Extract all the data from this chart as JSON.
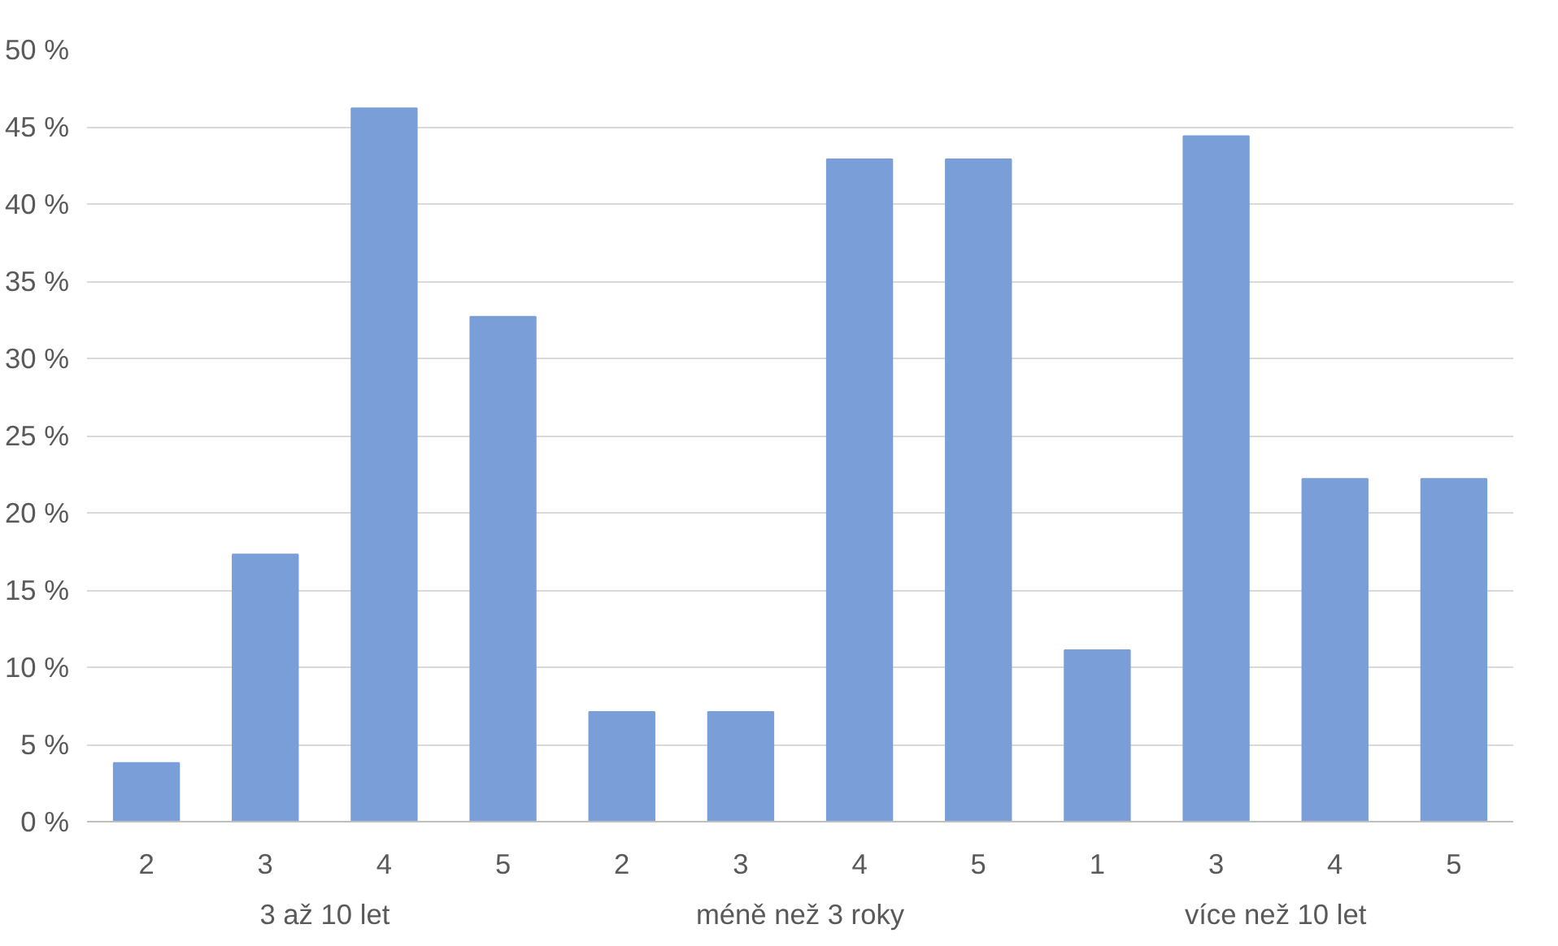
{
  "chart_data": {
    "type": "bar",
    "categories": [
      "2",
      "3",
      "4",
      "5",
      "2",
      "3",
      "4",
      "5",
      "1",
      "3",
      "4",
      "5"
    ],
    "values": [
      3.8,
      17.3,
      46.2,
      32.7,
      7.1,
      7.1,
      42.9,
      42.9,
      11.1,
      44.4,
      22.2,
      22.2
    ],
    "color": "#7a9fd8",
    "annotations": [
      "3 až 10 let",
      "méně než 3 roky",
      "více než 10 let"
    ],
    "ylim": [
      0,
      50
    ],
    "yticks": [
      {
        "value": 0,
        "label": "0 %"
      },
      {
        "value": 5,
        "label": "5 %"
      },
      {
        "value": 10,
        "label": "10 %"
      },
      {
        "value": 15,
        "label": "15 %"
      },
      {
        "value": 20,
        "label": "20 %"
      },
      {
        "value": 25,
        "label": "25 %"
      },
      {
        "value": 30,
        "label": "30 %"
      },
      {
        "value": 35,
        "label": "35 %"
      },
      {
        "value": 40,
        "label": "40 %"
      },
      {
        "value": 45,
        "label": "45 %"
      },
      {
        "value": 50,
        "label": "50 %"
      }
    ],
    "grid": "y"
  }
}
